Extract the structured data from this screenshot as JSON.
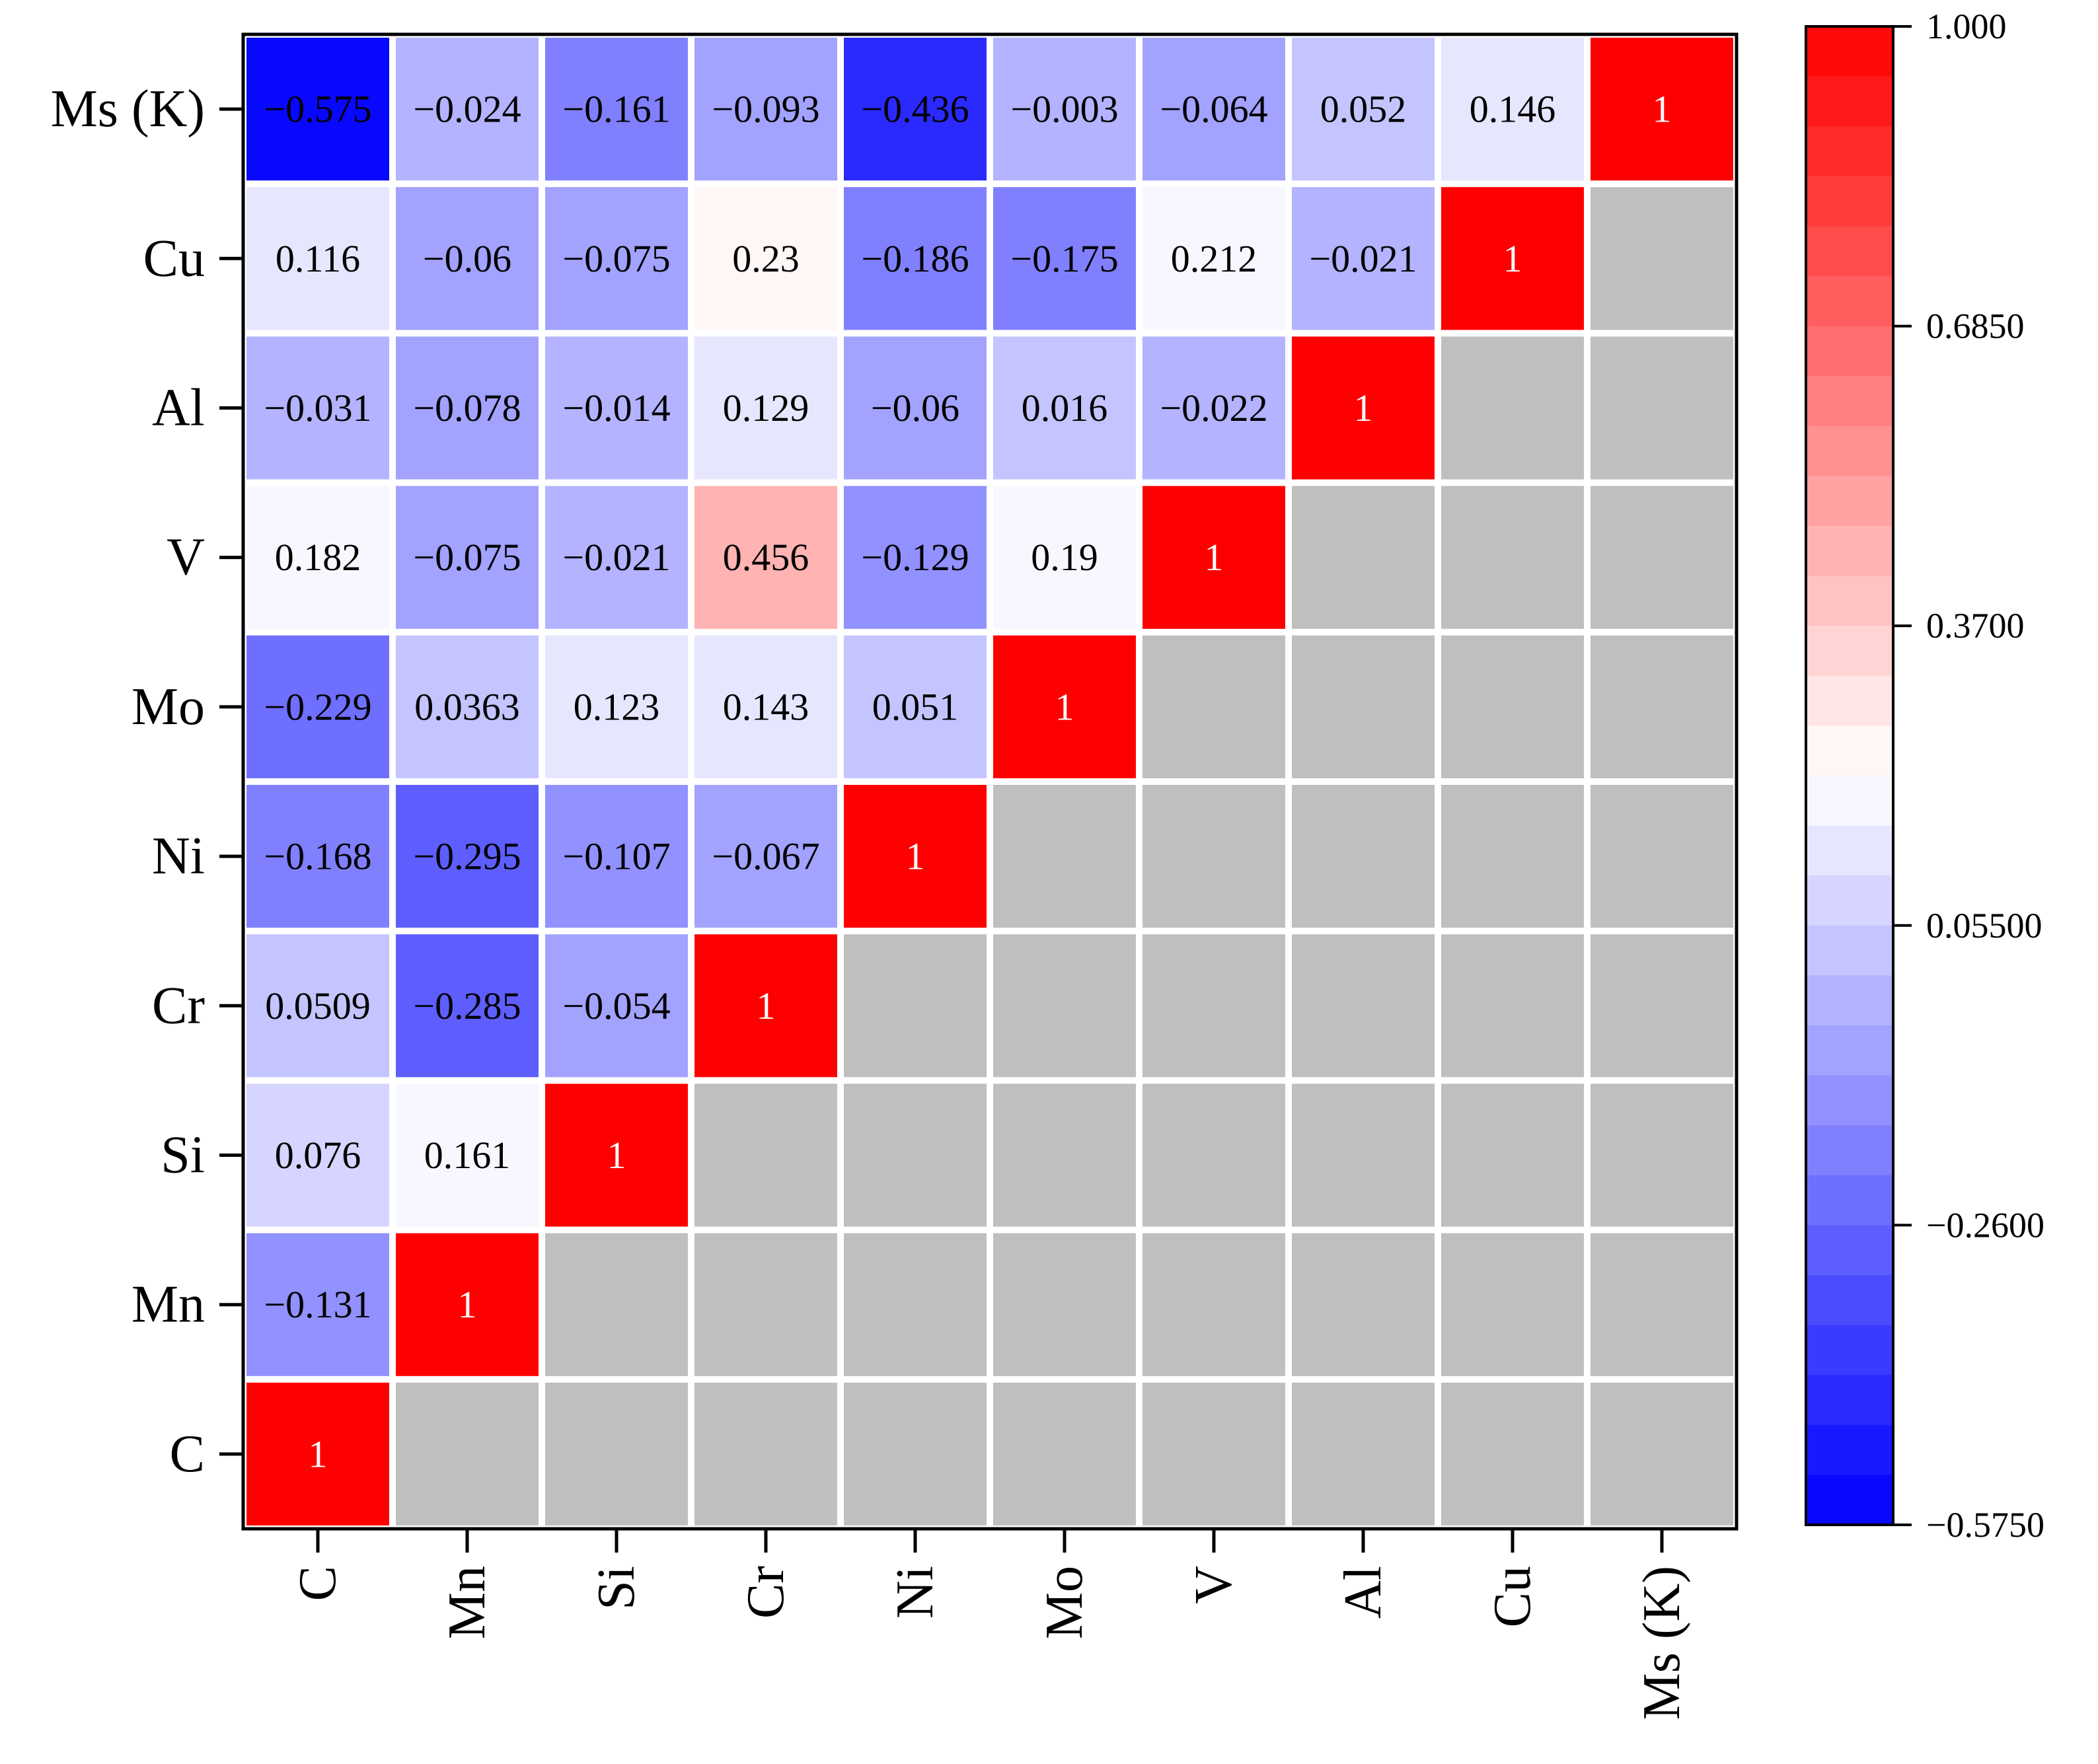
{
  "chart_data": {
    "type": "heatmap",
    "title": "",
    "xlabel": "",
    "ylabel": "",
    "variables": [
      "C",
      "Mn",
      "Si",
      "Cr",
      "Ni",
      "Mo",
      "V",
      "Al",
      "Cu",
      "Ms (K)"
    ],
    "matrix_note": "lower triangle only; rows index y (C bottom to Ms (K) top), columns index x",
    "cells": [
      {
        "row": "C",
        "col": "C",
        "value": 1,
        "label": "1"
      },
      {
        "row": "Mn",
        "col": "C",
        "value": -0.131,
        "label": "−0.131"
      },
      {
        "row": "Mn",
        "col": "Mn",
        "value": 1,
        "label": "1"
      },
      {
        "row": "Si",
        "col": "C",
        "value": 0.076,
        "label": "0.076"
      },
      {
        "row": "Si",
        "col": "Mn",
        "value": 0.161,
        "label": "0.161"
      },
      {
        "row": "Si",
        "col": "Si",
        "value": 1,
        "label": "1"
      },
      {
        "row": "Cr",
        "col": "C",
        "value": 0.0509,
        "label": "0.0509"
      },
      {
        "row": "Cr",
        "col": "Mn",
        "value": -0.285,
        "label": "−0.285"
      },
      {
        "row": "Cr",
        "col": "Si",
        "value": -0.054,
        "label": "−0.054"
      },
      {
        "row": "Cr",
        "col": "Cr",
        "value": 1,
        "label": "1"
      },
      {
        "row": "Ni",
        "col": "C",
        "value": -0.168,
        "label": "−0.168"
      },
      {
        "row": "Ni",
        "col": "Mn",
        "value": -0.295,
        "label": "−0.295"
      },
      {
        "row": "Ni",
        "col": "Si",
        "value": -0.107,
        "label": "−0.107"
      },
      {
        "row": "Ni",
        "col": "Cr",
        "value": -0.067,
        "label": "−0.067"
      },
      {
        "row": "Ni",
        "col": "Ni",
        "value": 1,
        "label": "1"
      },
      {
        "row": "Mo",
        "col": "C",
        "value": -0.229,
        "label": "−0.229"
      },
      {
        "row": "Mo",
        "col": "Mn",
        "value": 0.0363,
        "label": "0.0363"
      },
      {
        "row": "Mo",
        "col": "Si",
        "value": 0.123,
        "label": "0.123"
      },
      {
        "row": "Mo",
        "col": "Cr",
        "value": 0.143,
        "label": "0.143"
      },
      {
        "row": "Mo",
        "col": "Ni",
        "value": 0.051,
        "label": "0.051"
      },
      {
        "row": "Mo",
        "col": "Mo",
        "value": 1,
        "label": "1"
      },
      {
        "row": "V",
        "col": "C",
        "value": 0.182,
        "label": "0.182"
      },
      {
        "row": "V",
        "col": "Mn",
        "value": -0.075,
        "label": "−0.075"
      },
      {
        "row": "V",
        "col": "Si",
        "value": -0.021,
        "label": "−0.021"
      },
      {
        "row": "V",
        "col": "Cr",
        "value": 0.456,
        "label": "0.456"
      },
      {
        "row": "V",
        "col": "Ni",
        "value": -0.129,
        "label": "−0.129"
      },
      {
        "row": "V",
        "col": "Mo",
        "value": 0.19,
        "label": "0.19"
      },
      {
        "row": "V",
        "col": "V",
        "value": 1,
        "label": "1"
      },
      {
        "row": "Al",
        "col": "C",
        "value": -0.031,
        "label": "−0.031"
      },
      {
        "row": "Al",
        "col": "Mn",
        "value": -0.078,
        "label": "−0.078"
      },
      {
        "row": "Al",
        "col": "Si",
        "value": -0.014,
        "label": "−0.014"
      },
      {
        "row": "Al",
        "col": "Cr",
        "value": 0.129,
        "label": "0.129"
      },
      {
        "row": "Al",
        "col": "Ni",
        "value": -0.06,
        "label": "−0.06"
      },
      {
        "row": "Al",
        "col": "Mo",
        "value": 0.016,
        "label": "0.016"
      },
      {
        "row": "Al",
        "col": "V",
        "value": -0.022,
        "label": "−0.022"
      },
      {
        "row": "Al",
        "col": "Al",
        "value": 1,
        "label": "1"
      },
      {
        "row": "Cu",
        "col": "C",
        "value": 0.116,
        "label": "0.116"
      },
      {
        "row": "Cu",
        "col": "Mn",
        "value": -0.06,
        "label": "−0.06"
      },
      {
        "row": "Cu",
        "col": "Si",
        "value": -0.075,
        "label": "−0.075"
      },
      {
        "row": "Cu",
        "col": "Cr",
        "value": 0.23,
        "label": "0.23"
      },
      {
        "row": "Cu",
        "col": "Ni",
        "value": -0.186,
        "label": "−0.186"
      },
      {
        "row": "Cu",
        "col": "Mo",
        "value": -0.175,
        "label": "−0.175"
      },
      {
        "row": "Cu",
        "col": "V",
        "value": 0.212,
        "label": "0.212"
      },
      {
        "row": "Cu",
        "col": "Al",
        "value": -0.021,
        "label": "−0.021"
      },
      {
        "row": "Cu",
        "col": "Cu",
        "value": 1,
        "label": "1"
      },
      {
        "row": "Ms (K)",
        "col": "C",
        "value": -0.575,
        "label": "−0.575"
      },
      {
        "row": "Ms (K)",
        "col": "Mn",
        "value": -0.024,
        "label": "−0.024"
      },
      {
        "row": "Ms (K)",
        "col": "Si",
        "value": -0.161,
        "label": "−0.161"
      },
      {
        "row": "Ms (K)",
        "col": "Cr",
        "value": -0.093,
        "label": "−0.093"
      },
      {
        "row": "Ms (K)",
        "col": "Ni",
        "value": -0.436,
        "label": "−0.436"
      },
      {
        "row": "Ms (K)",
        "col": "Mo",
        "value": -0.003,
        "label": "−0.003"
      },
      {
        "row": "Ms (K)",
        "col": "V",
        "value": -0.064,
        "label": "−0.064"
      },
      {
        "row": "Ms (K)",
        "col": "Al",
        "value": 0.052,
        "label": "0.052"
      },
      {
        "row": "Ms (K)",
        "col": "Cu",
        "value": 0.146,
        "label": "0.146"
      },
      {
        "row": "Ms (K)",
        "col": "Ms (K)",
        "value": 1,
        "label": "1"
      }
    ],
    "colorbar": {
      "min": -0.575,
      "max": 1.0,
      "ticks": [
        {
          "value": 1.0,
          "label": "1.000"
        },
        {
          "value": 0.685,
          "label": "0.6850"
        },
        {
          "value": 0.37,
          "label": "0.3700"
        },
        {
          "value": 0.055,
          "label": "0.05500"
        },
        {
          "value": -0.26,
          "label": "−0.2600"
        },
        {
          "value": -0.575,
          "label": "−0.5750"
        }
      ],
      "levels": 30,
      "low_color": "#0000ff",
      "mid_color": "#ffffff",
      "high_color": "#ff0000",
      "mid_value": 0.2125
    },
    "colors": {
      "masked_cell": "#bfbfbf",
      "diagonal_text": "#ffffff",
      "cell_text": "#000000",
      "grid_line": "#ffffff"
    }
  }
}
